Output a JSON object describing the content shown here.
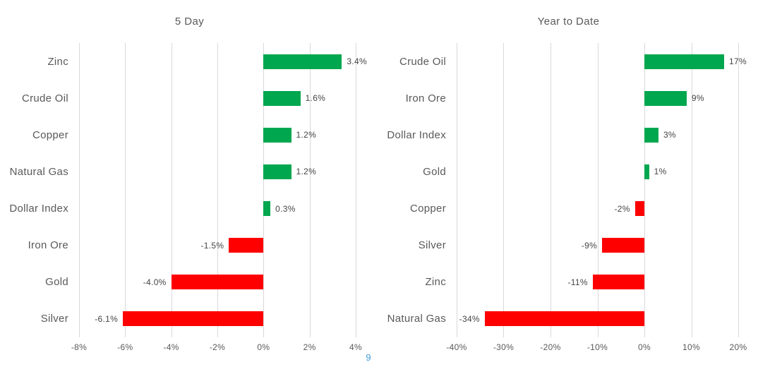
{
  "page": {
    "page_number": "9"
  },
  "colors": {
    "positive": "#00A74E",
    "negative": "#FF0000",
    "gridline": "#D9D9D9",
    "text_gray": "#595959",
    "data_label": "#454545",
    "page_number_blue": "#3E9CD3"
  },
  "chart_data": [
    {
      "type": "bar",
      "orientation": "horizontal",
      "title": "5 Day",
      "categories": [
        "Zinc",
        "Crude Oil",
        "Copper",
        "Natural Gas",
        "Dollar Index",
        "Iron Ore",
        "Gold",
        "Silver"
      ],
      "values": [
        3.4,
        1.6,
        1.2,
        1.2,
        0.3,
        -1.5,
        -4.0,
        -6.1
      ],
      "labels": [
        "3.4%",
        "1.6%",
        "1.2%",
        "1.2%",
        "0.3%",
        "-1.5%",
        "-4.0%",
        "-6.1%"
      ],
      "xlim": [
        -8,
        4
      ],
      "ticks": [
        -8,
        -6,
        -4,
        -2,
        0,
        2,
        4
      ],
      "tick_labels": [
        "-8%",
        "-6%",
        "-4%",
        "-2%",
        "0%",
        "2%",
        "4%"
      ],
      "grid": true,
      "legend": false
    },
    {
      "type": "bar",
      "orientation": "horizontal",
      "title": "Year to Date",
      "categories": [
        "Crude Oil",
        "Iron Ore",
        "Dollar Index",
        "Gold",
        "Copper",
        "Silver",
        "Zinc",
        "Natural Gas"
      ],
      "values": [
        17,
        9,
        3,
        1,
        -2,
        -9,
        -11,
        -34
      ],
      "labels": [
        "17%",
        "9%",
        "3%",
        "1%",
        "-2%",
        "-9%",
        "-11%",
        "-34%"
      ],
      "xlim": [
        -40,
        20
      ],
      "ticks": [
        -40,
        -30,
        -20,
        -10,
        0,
        10,
        20
      ],
      "tick_labels": [
        "-40%",
        "-30%",
        "-20%",
        "-10%",
        "0%",
        "10%",
        "20%"
      ],
      "grid": true,
      "legend": false
    }
  ]
}
